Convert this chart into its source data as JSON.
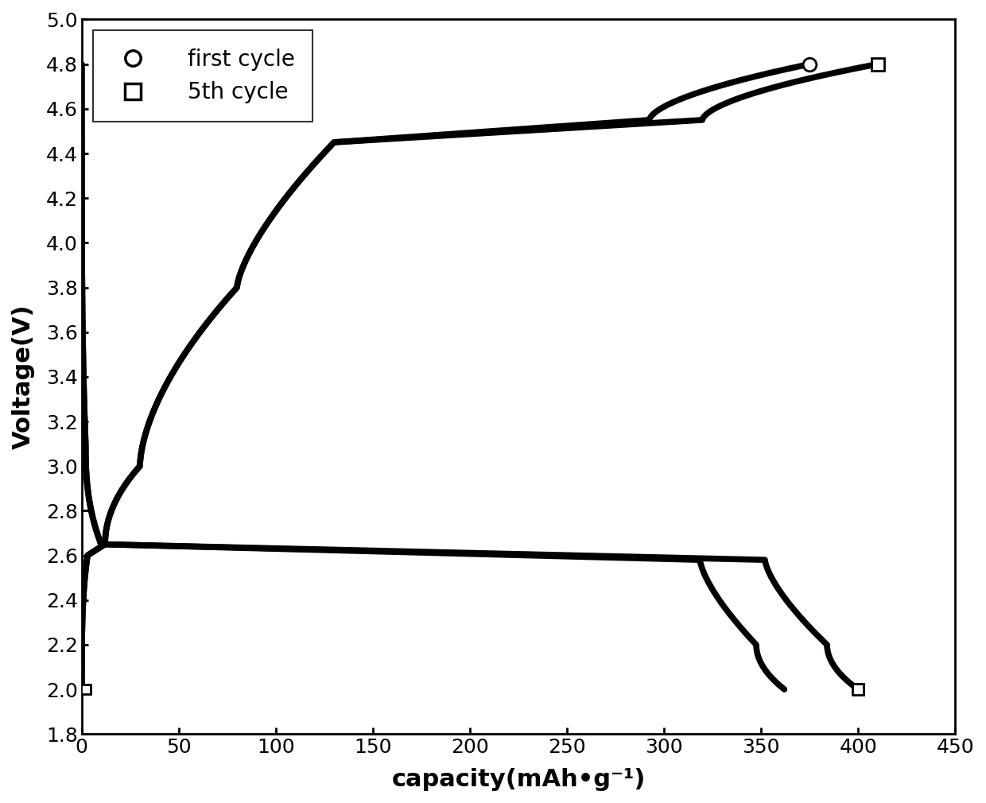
{
  "xlabel": "capacity(mAh•g⁻¹)",
  "ylabel": "Voltage(V)",
  "xlim": [
    0,
    450
  ],
  "ylim": [
    1.8,
    5.0
  ],
  "xticks": [
    0,
    50,
    100,
    150,
    200,
    250,
    300,
    350,
    400,
    450
  ],
  "yticks": [
    1.8,
    2.0,
    2.2,
    2.4,
    2.6,
    2.8,
    3.0,
    3.2,
    3.4,
    3.6,
    3.8,
    4.0,
    4.2,
    4.4,
    4.6,
    4.8,
    5.0
  ],
  "line_color": "#000000",
  "line_width": 5.5,
  "background_color": "#ffffff",
  "legend_label_first": "first cycle",
  "legend_label_5th": "5th cycle",
  "first_cycle_charge_end_x": 375,
  "first_cycle_discharge_end_x": 362,
  "cycle5_charge_end_x": 410,
  "cycle5_discharge_end_x": 400,
  "marker_size": 12,
  "xlabel_fontsize": 22,
  "ylabel_fontsize": 22,
  "tick_fontsize": 18,
  "legend_fontsize": 20
}
